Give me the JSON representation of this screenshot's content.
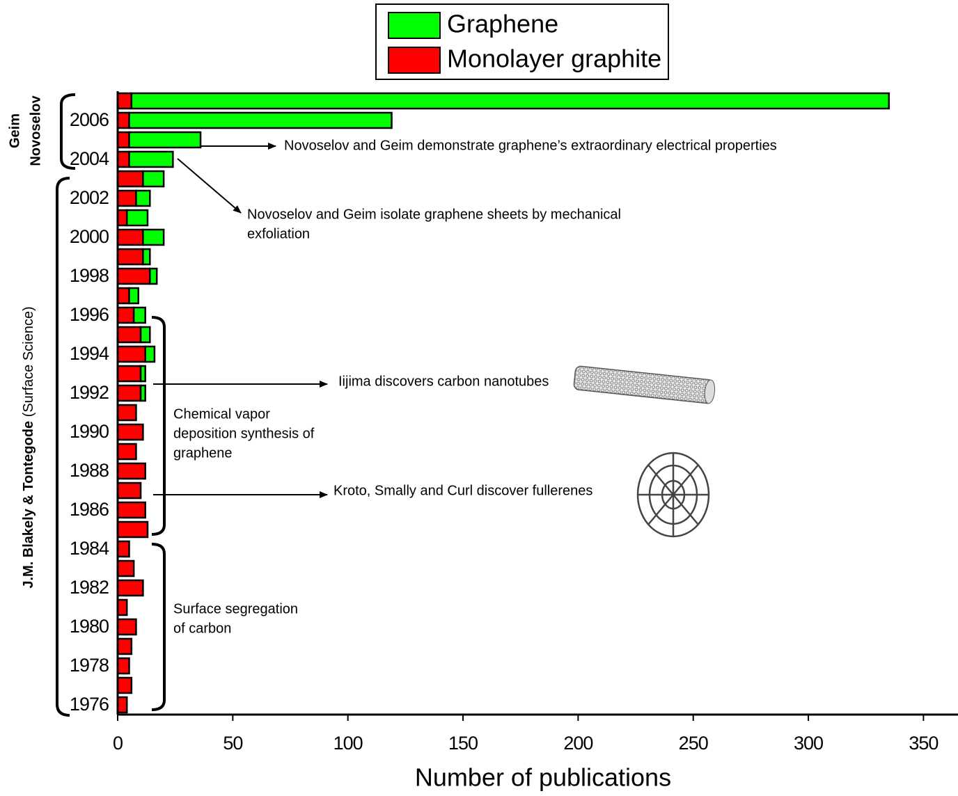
{
  "chart_data": {
    "type": "stacked-barh",
    "x_label": "Number of publications",
    "categories": [
      null,
      "2006",
      null,
      "2004",
      null,
      "2002",
      null,
      "2000",
      null,
      "1998",
      null,
      "1996",
      null,
      "1994",
      null,
      "1992",
      null,
      "1990",
      null,
      "1988",
      null,
      "1986",
      null,
      "1984",
      null,
      "1982",
      null,
      "1980",
      null,
      "1978",
      null,
      "1976"
    ],
    "series": [
      {
        "name": "Graphene",
        "color": "#00ff00",
        "values": [
          329,
          114,
          31,
          19,
          9,
          6,
          9,
          9,
          3,
          3,
          4,
          5,
          4,
          4,
          2,
          2,
          0,
          0,
          0,
          0,
          0,
          0,
          0,
          0,
          0,
          0,
          0,
          0,
          0,
          0,
          0,
          0
        ]
      },
      {
        "name": "Monolayer graphite",
        "color": "#ff0000",
        "values": [
          6,
          5,
          5,
          5,
          11,
          8,
          4,
          11,
          11,
          14,
          5,
          7,
          10,
          12,
          10,
          10,
          8,
          11,
          8,
          12,
          10,
          12,
          13,
          5,
          7,
          11,
          4,
          8,
          6,
          5,
          6,
          4
        ]
      }
    ],
    "xlim": [
      0,
      365
    ],
    "xticks": [
      0,
      50,
      100,
      150,
      200,
      250,
      300,
      350
    ],
    "group_labels": {
      "geim": [
        "Geim",
        "Novoselov"
      ],
      "blakely_bold": "J.M. Blakely & Tontegode",
      "blakely_normal": "(Surface Science)"
    },
    "annotations": [
      {
        "lines": [
          "Novoselov and Geim demonstrate graphene’s extraordinary electrical properties"
        ]
      },
      {
        "lines": [
          "Novoselov and Geim isolate graphene sheets by mechanical",
          "exfoliation"
        ]
      },
      {
        "lines": [
          "Iijima discovers carbon nanotubes"
        ]
      },
      {
        "lines": [
          "Kroto, Smally and Curl discover fullerenes"
        ]
      },
      {
        "lines": [
          "Chemical vapor",
          "deposition synthesis of",
          "graphene"
        ]
      },
      {
        "lines": [
          "Surface segregation",
          "of carbon"
        ]
      }
    ]
  }
}
